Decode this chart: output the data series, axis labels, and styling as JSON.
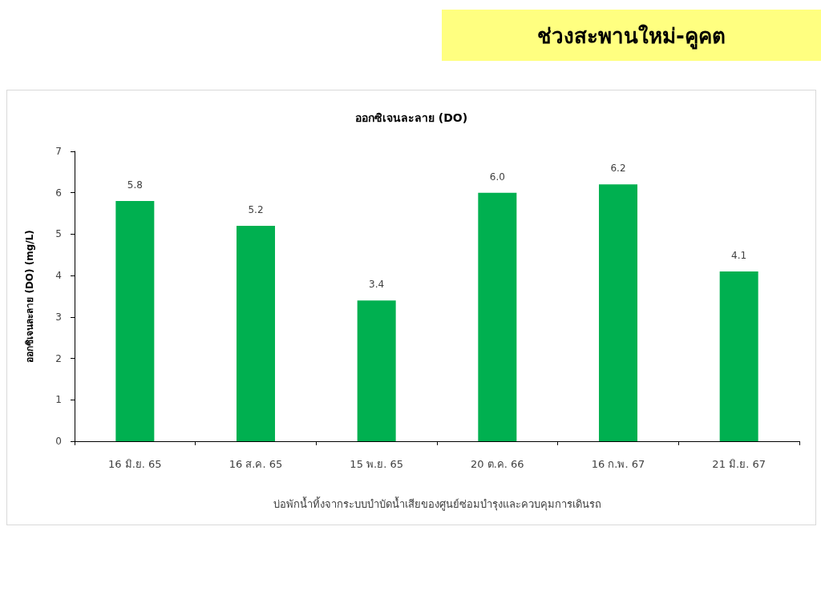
{
  "chart_data": {
    "type": "bar",
    "title": "ช่วงสะพานใหม่-คูคต",
    "subtitle": "ออกซิเจนละลาย (DO)",
    "ylabel": "ออกซิเจนละลาย (DO) (mg/L)",
    "xlabel": "บ่อพักน้ำทิ้งจากระบบบำบัดน้ำเสียของศูนย์ซ่อมบำรุงและควบคุมการเดินรถ",
    "categories": [
      "16 มิ.ย. 65",
      "16 ส.ค. 65",
      "15 พ.ย. 65",
      "20 ต.ค. 66",
      "16 ก.พ. 67",
      "21 มิ.ย. 67"
    ],
    "values": [
      5.8,
      5.2,
      3.4,
      6.0,
      6.2,
      4.1
    ],
    "value_labels": [
      "5.8",
      "5.2",
      "3.4",
      "6.0",
      "6.2",
      "4.1"
    ],
    "color": "#00b050",
    "ylim": [
      0,
      7
    ],
    "yticks": [
      0,
      1,
      2,
      3,
      4,
      5,
      6,
      7
    ],
    "grid": false
  }
}
